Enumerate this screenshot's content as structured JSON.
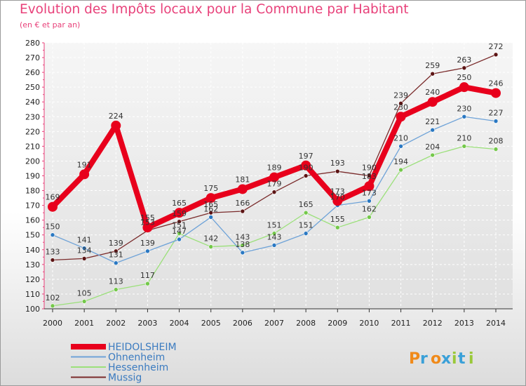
{
  "title": "Evolution des Impôts locaux pour la Commune par Habitant",
  "subtitle": "(en € et par an)",
  "brand": "Proxiti",
  "chart_data": {
    "type": "line",
    "title": "Evolution des Impôts locaux pour la Commune par Habitant",
    "ylabel": "(en € et par an)",
    "xlabel": "",
    "x": [
      "2000",
      "2001",
      "2002",
      "2003",
      "2004",
      "2005",
      "2006",
      "2007",
      "2008",
      "2009",
      "2010",
      "2011",
      "2012",
      "2013",
      "2014"
    ],
    "ylim": [
      100,
      280
    ],
    "yticks": [
      100,
      110,
      120,
      130,
      140,
      150,
      160,
      170,
      180,
      190,
      200,
      210,
      220,
      230,
      240,
      250,
      260,
      270,
      280
    ],
    "legend_position": "bottom-left",
    "series": [
      {
        "name": "HEIDOLSHEIM",
        "color": "#e8001c",
        "marker": "#e8001c",
        "values": [
          169,
          191,
          224,
          155,
          165,
          175,
          181,
          189,
          197,
          173,
          183,
          230,
          240,
          250,
          246
        ]
      },
      {
        "name": "Ohnenheim",
        "color": "#6fa3d8",
        "marker": "#2a78c2",
        "values": [
          150,
          141,
          131,
          139,
          147,
          162,
          138,
          143,
          151,
          170,
          173,
          210,
          221,
          230,
          227
        ]
      },
      {
        "name": "Hessenheim",
        "color": "#9be07a",
        "marker": "#74c84a",
        "values": [
          102,
          105,
          113,
          117,
          151,
          142,
          143,
          151,
          165,
          155,
          162,
          194,
          204,
          210,
          208
        ]
      },
      {
        "name": "Mussig",
        "color": "#7a2b2b",
        "marker": "#5c1414",
        "values": [
          133,
          134,
          139,
          153,
          159,
          165,
          166,
          179,
          190,
          193,
          190,
          239,
          259,
          263,
          272
        ]
      }
    ]
  }
}
